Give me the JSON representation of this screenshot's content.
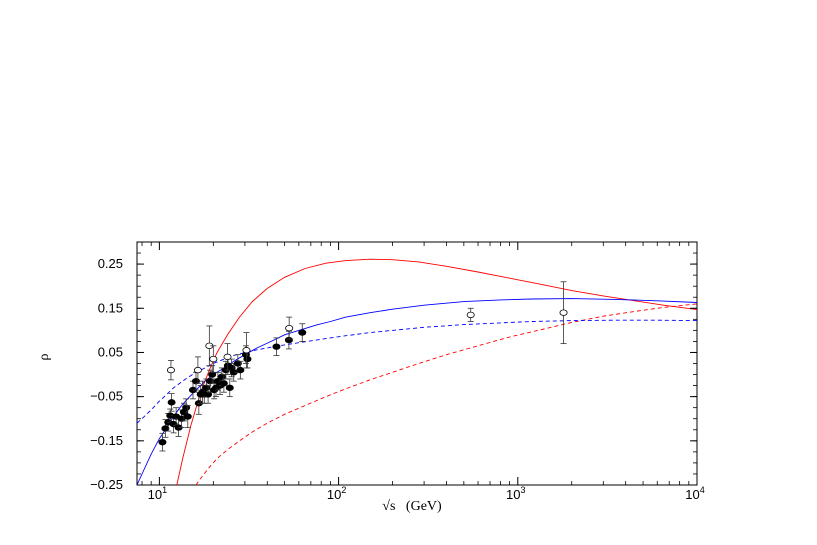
{
  "chart_data": {
    "type": "scatter",
    "title": "",
    "xlabel": "√s   (GeV)",
    "ylabel": "ρ",
    "xscale": "log",
    "xlim": [
      7.5,
      10000
    ],
    "ylim": [
      -0.25,
      0.3
    ],
    "x_ticks": [
      {
        "value": 10,
        "base": "10",
        "exp": "1"
      },
      {
        "value": 100,
        "base": "10",
        "exp": "2"
      },
      {
        "value": 1000,
        "base": "10",
        "exp": "3"
      },
      {
        "value": 10000,
        "base": "10",
        "exp": "4"
      }
    ],
    "y_ticks": [
      {
        "value": 0.25,
        "label": "0.25"
      },
      {
        "value": 0.15,
        "label": "0.15"
      },
      {
        "value": 0.05,
        "label": "0.05"
      },
      {
        "value": -0.05,
        "label": "−0.05"
      },
      {
        "value": -0.15,
        "label": "−0.15"
      },
      {
        "value": -0.25,
        "label": "−0.25"
      }
    ],
    "grid": false,
    "curves": [
      {
        "color": "#ff0000",
        "dash": false,
        "x": [
          12.5,
          13.5,
          15,
          17,
          19,
          21,
          24,
          28,
          33,
          40,
          50,
          65,
          85,
          110,
          150,
          200,
          280,
          400,
          600,
          900,
          1400,
          2000,
          3000,
          4500,
          6500,
          10000
        ],
        "y": [
          -0.25,
          -0.19,
          -0.115,
          -0.04,
          0.01,
          0.05,
          0.09,
          0.13,
          0.165,
          0.195,
          0.22,
          0.24,
          0.252,
          0.258,
          0.261,
          0.26,
          0.255,
          0.245,
          0.232,
          0.218,
          0.203,
          0.19,
          0.178,
          0.167,
          0.157,
          0.147
        ]
      },
      {
        "color": "#ff0000",
        "dash": true,
        "x": [
          16,
          17,
          19,
          21,
          24,
          28,
          33,
          40,
          50,
          65,
          85,
          110,
          150,
          200,
          280,
          400,
          600,
          900,
          1400,
          2000,
          3000,
          4500,
          6500,
          10000
        ],
        "y": [
          -0.25,
          -0.235,
          -0.21,
          -0.19,
          -0.17,
          -0.15,
          -0.13,
          -0.11,
          -0.09,
          -0.07,
          -0.05,
          -0.032,
          -0.012,
          0.005,
          0.025,
          0.045,
          0.065,
          0.085,
          0.103,
          0.118,
          0.132,
          0.143,
          0.152,
          0.16
        ]
      },
      {
        "color": "#0000ff",
        "dash": false,
        "x": [
          7.5,
          8,
          9,
          10,
          11,
          12,
          13,
          14,
          16,
          18,
          20,
          23,
          26,
          30,
          35,
          42,
          50,
          60,
          75,
          90,
          110,
          150,
          200,
          300,
          500,
          800,
          1200,
          2000,
          3500,
          6000,
          10000
        ],
        "y": [
          -0.25,
          -0.225,
          -0.18,
          -0.145,
          -0.12,
          -0.095,
          -0.075,
          -0.06,
          -0.035,
          -0.015,
          0.0,
          0.015,
          0.03,
          0.045,
          0.06,
          0.075,
          0.09,
          0.1,
          0.112,
          0.12,
          0.13,
          0.14,
          0.148,
          0.157,
          0.165,
          0.169,
          0.171,
          0.172,
          0.17,
          0.167,
          0.163
        ]
      },
      {
        "color": "#0000ff",
        "dash": true,
        "x": [
          7.5,
          8,
          9,
          10,
          11,
          12,
          14,
          16,
          18,
          20,
          23,
          26,
          30,
          35,
          42,
          50,
          60,
          75,
          90,
          110,
          150,
          200,
          300,
          500,
          800,
          1200,
          2000,
          3500,
          6000,
          10000
        ],
        "y": [
          -0.11,
          -0.1,
          -0.08,
          -0.06,
          -0.045,
          -0.03,
          -0.01,
          0.005,
          0.015,
          0.025,
          0.035,
          0.043,
          0.05,
          0.056,
          0.062,
          0.067,
          0.072,
          0.078,
          0.083,
          0.088,
          0.095,
          0.1,
          0.107,
          0.113,
          0.117,
          0.12,
          0.122,
          0.123,
          0.123,
          0.122
        ]
      }
    ],
    "series": [
      {
        "marker": "filled",
        "points": [
          {
            "x": 10.4,
            "y": -0.153,
            "err": 0.02
          },
          {
            "x": 10.8,
            "y": -0.122,
            "err": 0.02
          },
          {
            "x": 11.2,
            "y": -0.108,
            "err": 0.02
          },
          {
            "x": 11.5,
            "y": -0.093,
            "err": 0.015
          },
          {
            "x": 11.7,
            "y": -0.063,
            "err": 0.02
          },
          {
            "x": 12.0,
            "y": -0.112,
            "err": 0.02
          },
          {
            "x": 12.4,
            "y": -0.095,
            "err": 0.02
          },
          {
            "x": 12.8,
            "y": -0.12,
            "err": 0.02
          },
          {
            "x": 13.3,
            "y": -0.1,
            "err": 0.02
          },
          {
            "x": 13.7,
            "y": -0.085,
            "err": 0.02
          },
          {
            "x": 14.1,
            "y": -0.075,
            "err": 0.02
          },
          {
            "x": 14.4,
            "y": -0.095,
            "err": 0.025
          },
          {
            "x": 15.4,
            "y": -0.035,
            "err": 0.02
          },
          {
            "x": 16.0,
            "y": -0.015,
            "err": 0.02
          },
          {
            "x": 16.6,
            "y": -0.065,
            "err": 0.025
          },
          {
            "x": 17.0,
            "y": -0.045,
            "err": 0.02
          },
          {
            "x": 17.4,
            "y": -0.04,
            "err": 0.025
          },
          {
            "x": 17.8,
            "y": -0.045,
            "err": 0.02
          },
          {
            "x": 18.3,
            "y": -0.03,
            "err": 0.02
          },
          {
            "x": 18.7,
            "y": -0.045,
            "err": 0.02
          },
          {
            "x": 19.2,
            "y": -0.015,
            "err": 0.025
          },
          {
            "x": 19.7,
            "y": 0.0,
            "err": 0.02
          },
          {
            "x": 20.2,
            "y": -0.035,
            "err": 0.02
          },
          {
            "x": 20.7,
            "y": -0.03,
            "err": 0.02
          },
          {
            "x": 21.2,
            "y": -0.015,
            "err": 0.02
          },
          {
            "x": 21.8,
            "y": -0.025,
            "err": 0.02
          },
          {
            "x": 22.3,
            "y": -0.005,
            "err": 0.02
          },
          {
            "x": 22.9,
            "y": -0.02,
            "err": 0.02
          },
          {
            "x": 23.5,
            "y": 0.01,
            "err": 0.02
          },
          {
            "x": 24.1,
            "y": 0.02,
            "err": 0.02
          },
          {
            "x": 24.7,
            "y": -0.03,
            "err": 0.02
          },
          {
            "x": 25.3,
            "y": 0.015,
            "err": 0.02
          },
          {
            "x": 26.0,
            "y": 0.005,
            "err": 0.02
          },
          {
            "x": 27.4,
            "y": 0.025,
            "err": 0.02
          },
          {
            "x": 28.3,
            "y": 0.01,
            "err": 0.02
          },
          {
            "x": 30.4,
            "y": 0.045,
            "err": 0.02
          },
          {
            "x": 31.0,
            "y": 0.035,
            "err": 0.02
          },
          {
            "x": 45.0,
            "y": 0.063,
            "err": 0.02
          },
          {
            "x": 52.8,
            "y": 0.078,
            "err": 0.02
          },
          {
            "x": 62.7,
            "y": 0.095,
            "err": 0.02
          }
        ]
      },
      {
        "marker": "open",
        "points": [
          {
            "x": 11.6,
            "y": 0.01,
            "err": 0.022
          },
          {
            "x": 16.4,
            "y": 0.01,
            "err": 0.03
          },
          {
            "x": 19.0,
            "y": 0.065,
            "err": 0.045
          },
          {
            "x": 20.0,
            "y": 0.035,
            "err": 0.03
          },
          {
            "x": 24.0,
            "y": 0.04,
            "err": 0.03
          },
          {
            "x": 30.6,
            "y": 0.055,
            "err": 0.04
          },
          {
            "x": 53.0,
            "y": 0.105,
            "err": 0.025
          },
          {
            "x": 546,
            "y": 0.135,
            "err": 0.015
          },
          {
            "x": 1800,
            "y": 0.14,
            "err": 0.07
          }
        ]
      }
    ]
  }
}
